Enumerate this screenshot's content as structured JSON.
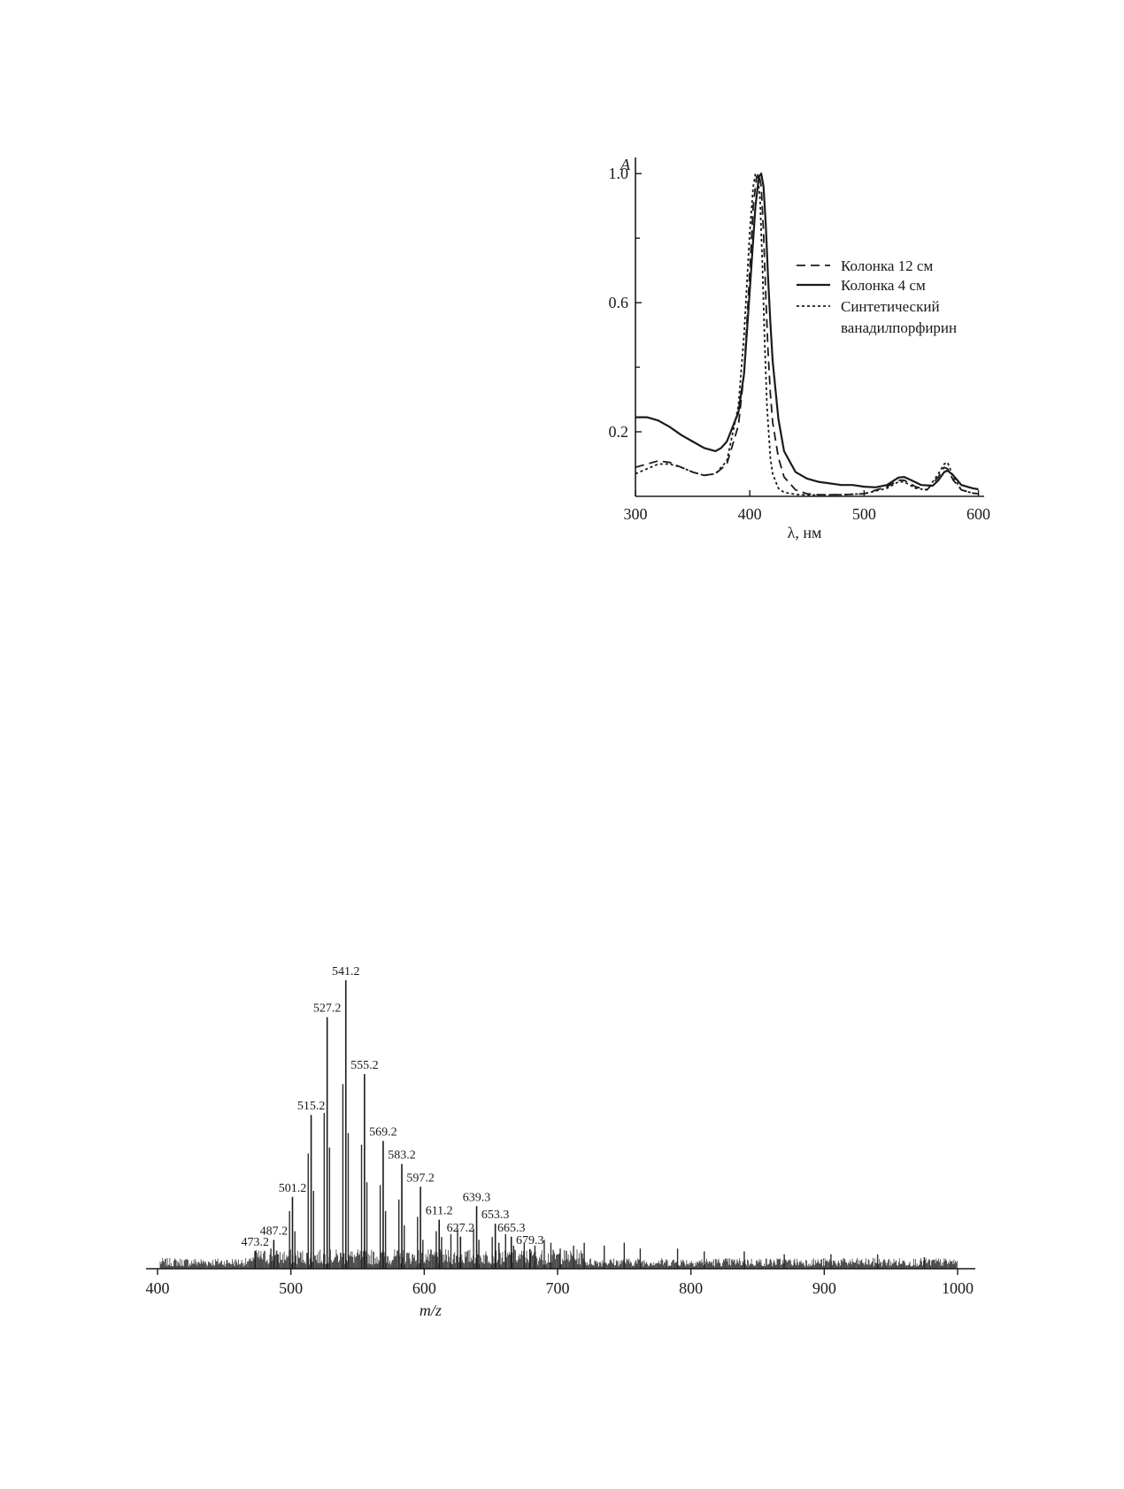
{
  "chart_data": [
    {
      "type": "line",
      "title": "",
      "ylabel": "A",
      "xlabel": "λ, нм",
      "xlim": [
        300,
        605
      ],
      "ylim": [
        0,
        1.05
      ],
      "xticks": [
        300,
        400,
        500,
        600
      ],
      "xtick_labels": [
        "300",
        "400",
        "500",
        "600"
      ],
      "yticks": [
        0.2,
        0.6,
        1.0
      ],
      "ytick_labels": [
        "0.2",
        "0.6",
        "1.0"
      ],
      "yticks_minor": [
        0.4,
        0.8
      ],
      "legend_position": "right",
      "legend": [
        "Колонка 12 см",
        "Колонка 4 см",
        "Синтетический ванадилпорфирин"
      ],
      "series": [
        {
          "name": "Колонка 12 см",
          "style": "dashed",
          "x": [
            300,
            310,
            320,
            330,
            340,
            350,
            360,
            370,
            380,
            390,
            395,
            400,
            403,
            406,
            408,
            410,
            412,
            414,
            416,
            418,
            420,
            425,
            430,
            440,
            450,
            460,
            480,
            500,
            520,
            530,
            535,
            545,
            555,
            565,
            570,
            573,
            578,
            585,
            595,
            600
          ],
          "y": [
            0.09,
            0.1,
            0.11,
            0.105,
            0.09,
            0.075,
            0.065,
            0.07,
            0.1,
            0.22,
            0.38,
            0.7,
            0.9,
            0.99,
            1.0,
            0.96,
            0.82,
            0.62,
            0.45,
            0.32,
            0.23,
            0.12,
            0.06,
            0.02,
            0.008,
            0.005,
            0.005,
            0.008,
            0.03,
            0.05,
            0.05,
            0.03,
            0.02,
            0.06,
            0.09,
            0.085,
            0.05,
            0.02,
            0.01,
            0.008
          ]
        },
        {
          "name": "Колонка 4 см",
          "style": "solid",
          "x": [
            300,
            310,
            320,
            330,
            340,
            350,
            360,
            370,
            375,
            380,
            390,
            395,
            400,
            405,
            408,
            410,
            412,
            414,
            416,
            418,
            420,
            425,
            430,
            440,
            450,
            460,
            470,
            480,
            490,
            500,
            510,
            520,
            530,
            535,
            540,
            550,
            560,
            565,
            570,
            573,
            578,
            585,
            595,
            600
          ],
          "y": [
            0.245,
            0.245,
            0.235,
            0.215,
            0.19,
            0.17,
            0.15,
            0.14,
            0.15,
            0.17,
            0.26,
            0.38,
            0.64,
            0.9,
            0.99,
            1.0,
            0.96,
            0.84,
            0.68,
            0.54,
            0.42,
            0.24,
            0.14,
            0.075,
            0.055,
            0.045,
            0.04,
            0.035,
            0.035,
            0.03,
            0.028,
            0.035,
            0.058,
            0.06,
            0.052,
            0.035,
            0.033,
            0.05,
            0.075,
            0.08,
            0.065,
            0.035,
            0.025,
            0.022
          ]
        },
        {
          "name": "Синтетический ванадилпорфирин",
          "style": "dotted",
          "x": [
            300,
            310,
            320,
            330,
            340,
            350,
            360,
            370,
            380,
            390,
            395,
            400,
            403,
            405,
            407,
            409,
            411,
            413,
            415,
            418,
            420,
            425,
            430,
            440,
            450,
            460,
            480,
            500,
            520,
            530,
            535,
            545,
            555,
            565,
            570,
            573,
            578,
            585,
            595,
            600
          ],
          "y": [
            0.07,
            0.085,
            0.1,
            0.1,
            0.09,
            0.075,
            0.065,
            0.07,
            0.11,
            0.28,
            0.5,
            0.82,
            0.96,
            1.0,
            0.99,
            0.92,
            0.72,
            0.48,
            0.28,
            0.12,
            0.07,
            0.025,
            0.012,
            0.006,
            0.004,
            0.004,
            0.005,
            0.008,
            0.025,
            0.045,
            0.045,
            0.025,
            0.02,
            0.07,
            0.1,
            0.105,
            0.06,
            0.02,
            0.01,
            0.008
          ]
        }
      ]
    },
    {
      "type": "bar",
      "title": "",
      "xlabel": "m/z",
      "ylabel": "",
      "xlim": [
        390,
        1012
      ],
      "ylim": [
        0,
        100
      ],
      "xticks": [
        400,
        500,
        600,
        700,
        800,
        900,
        1000
      ],
      "xtick_labels": [
        "400",
        "500",
        "600",
        "700",
        "800",
        "900",
        "1000"
      ],
      "peaks": [
        {
          "mz": 473.2,
          "label": "473.2",
          "intensity": 6.2
        },
        {
          "mz": 487.2,
          "label": "487.2",
          "intensity": 10.0
        },
        {
          "mz": 501.2,
          "label": "501.2",
          "intensity": 24.9
        },
        {
          "mz": 515.2,
          "label": "515.2",
          "intensity": 53.3
        },
        {
          "mz": 527.2,
          "label": "527.2",
          "intensity": 87.2
        },
        {
          "mz": 541.2,
          "label": "541.2",
          "intensity": 100.0
        },
        {
          "mz": 555.2,
          "label": "555.2",
          "intensity": 67.5
        },
        {
          "mz": 569.2,
          "label": "569.2",
          "intensity": 44.3
        },
        {
          "mz": 583.2,
          "label": "583.2",
          "intensity": 36.3
        },
        {
          "mz": 597.2,
          "label": "597.2",
          "intensity": 28.4
        },
        {
          "mz": 611.2,
          "label": "611.2",
          "intensity": 17.0
        },
        {
          "mz": 627.2,
          "label": "627.2",
          "intensity": 11.1
        },
        {
          "mz": 639.3,
          "label": "639.3",
          "intensity": 21.7
        },
        {
          "mz": 653.3,
          "label": "653.3",
          "intensity": 15.6
        },
        {
          "mz": 665.3,
          "label": "665.3",
          "intensity": 11.1
        },
        {
          "mz": 679.3,
          "label": "679.3",
          "intensity": 6.8
        }
      ],
      "minor_peaks": [
        {
          "mz": 485,
          "intensity": 7
        },
        {
          "mz": 490,
          "intensity": 5
        },
        {
          "mz": 499,
          "intensity": 20
        },
        {
          "mz": 503,
          "intensity": 13
        },
        {
          "mz": 513,
          "intensity": 40
        },
        {
          "mz": 517,
          "intensity": 27
        },
        {
          "mz": 525,
          "intensity": 54
        },
        {
          "mz": 529,
          "intensity": 42
        },
        {
          "mz": 539,
          "intensity": 64
        },
        {
          "mz": 543,
          "intensity": 47
        },
        {
          "mz": 553,
          "intensity": 43
        },
        {
          "mz": 557,
          "intensity": 30
        },
        {
          "mz": 567,
          "intensity": 29
        },
        {
          "mz": 571,
          "intensity": 20
        },
        {
          "mz": 581,
          "intensity": 24
        },
        {
          "mz": 585,
          "intensity": 15
        },
        {
          "mz": 595,
          "intensity": 18
        },
        {
          "mz": 599,
          "intensity": 10
        },
        {
          "mz": 609,
          "intensity": 13
        },
        {
          "mz": 613,
          "intensity": 11
        },
        {
          "mz": 620,
          "intensity": 12
        },
        {
          "mz": 625,
          "intensity": 14
        },
        {
          "mz": 637,
          "intensity": 14
        },
        {
          "mz": 641,
          "intensity": 10
        },
        {
          "mz": 651,
          "intensity": 11
        },
        {
          "mz": 656,
          "intensity": 9
        },
        {
          "mz": 661,
          "intensity": 12
        },
        {
          "mz": 667,
          "intensity": 8
        },
        {
          "mz": 675,
          "intensity": 9
        },
        {
          "mz": 683,
          "intensity": 8
        },
        {
          "mz": 690,
          "intensity": 10
        },
        {
          "mz": 695,
          "intensity": 9
        },
        {
          "mz": 702,
          "intensity": 7
        },
        {
          "mz": 712,
          "intensity": 8
        },
        {
          "mz": 720,
          "intensity": 9
        },
        {
          "mz": 735,
          "intensity": 8
        },
        {
          "mz": 750,
          "intensity": 9
        },
        {
          "mz": 762,
          "intensity": 7
        },
        {
          "mz": 790,
          "intensity": 7
        },
        {
          "mz": 810,
          "intensity": 6
        },
        {
          "mz": 840,
          "intensity": 6
        },
        {
          "mz": 870,
          "intensity": 5
        },
        {
          "mz": 905,
          "intensity": 5
        },
        {
          "mz": 940,
          "intensity": 5
        },
        {
          "mz": 975,
          "intensity": 4
        }
      ],
      "noise_level": 2.5
    }
  ]
}
